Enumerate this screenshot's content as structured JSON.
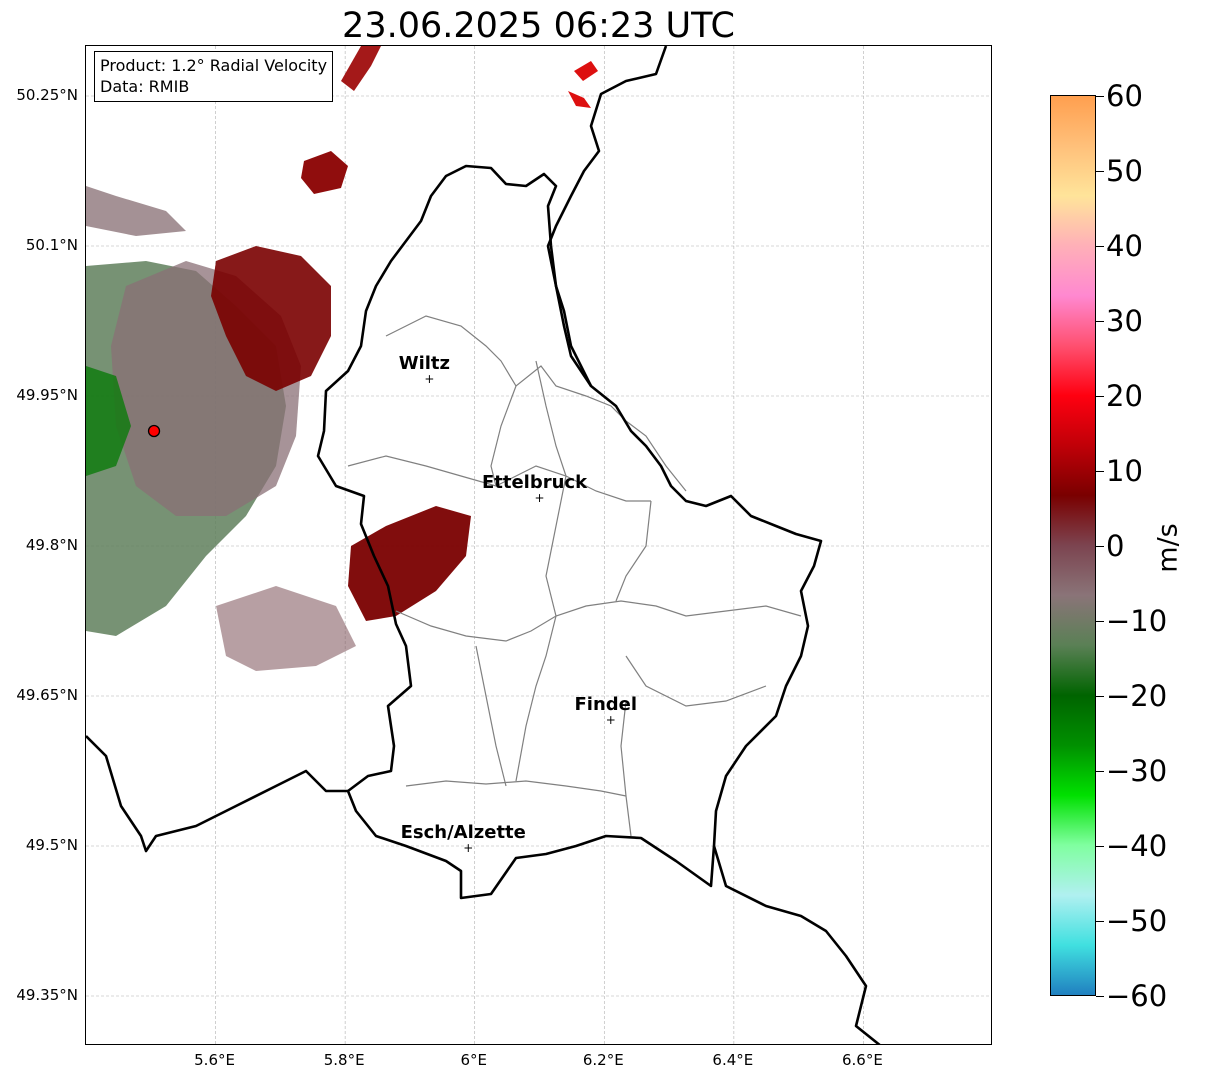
{
  "title": "23.06.2025 06:23 UTC",
  "info": {
    "product": "Product: 1.2° Radial Velocity",
    "data": "Data: RMIB"
  },
  "axes": {
    "lat_labels": [
      "50.25°N",
      "50.1°N",
      "49.95°N",
      "49.8°N",
      "49.65°N",
      "49.5°N",
      "49.35°N"
    ],
    "lon_labels": [
      "5.6°E",
      "5.8°E",
      "6°E",
      "6.2°E",
      "6.4°E",
      "6.6°E"
    ]
  },
  "cities": [
    {
      "name": "Wiltz",
      "lon": 5.93,
      "lat": 49.967
    },
    {
      "name": "Ettelbruck",
      "lon": 6.1,
      "lat": 49.848
    },
    {
      "name": "Findel",
      "lon": 6.21,
      "lat": 49.626
    },
    {
      "name": "Esch/Alzette",
      "lon": 5.99,
      "lat": 49.498
    }
  ],
  "radar_site": {
    "lon": 5.505,
    "lat": 49.915,
    "color": "#ff0000"
  },
  "colorbar": {
    "unit": "m/s",
    "min": -60,
    "max": 60,
    "tick_labels": [
      "60",
      "50",
      "40",
      "30",
      "20",
      "10",
      "0",
      "−10",
      "−20",
      "−30",
      "−40",
      "−50",
      "−60"
    ],
    "gradient": [
      "#ff9f4f",
      "#ffc07a",
      "#ffe49a",
      "#ffb0b8",
      "#ff88d0",
      "#ff5070",
      "#ff0010",
      "#c00008",
      "#7a0000",
      "#7c4450",
      "#8a7478",
      "#5a8055",
      "#006400",
      "#009000",
      "#00e000",
      "#80ffa0",
      "#b0f0f0",
      "#40e0e0",
      "#2080c0"
    ]
  },
  "map_style": {
    "border_color": "#000000",
    "canton_color": "#808080",
    "grid_color": "#b0b0b0",
    "inbound_color": "#7a0000",
    "outbound_color": "#5a7a55",
    "near_zero_color": "#8a6870"
  }
}
